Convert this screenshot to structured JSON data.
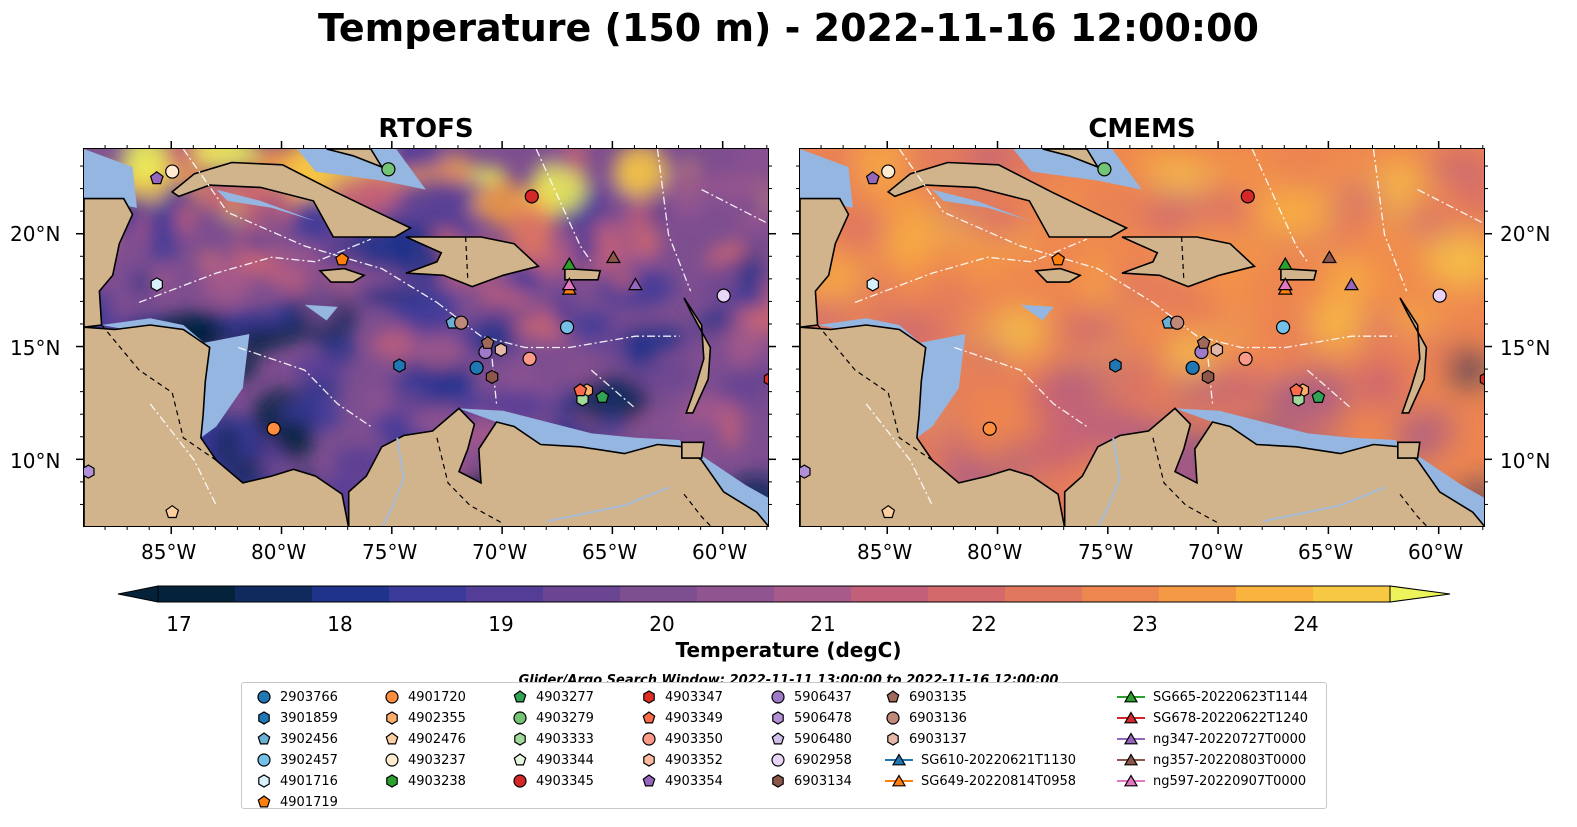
{
  "title": "Temperature (150 m) - 2022-11-16 12:00:00",
  "panels": [
    {
      "title": "RTOFS"
    },
    {
      "title": "CMEMS"
    }
  ],
  "lat_ticks": [
    "20°N",
    "15°N",
    "10°N"
  ],
  "lon_ticks": [
    "85°W",
    "80°W",
    "75°W",
    "70°W",
    "65°W",
    "60°W"
  ],
  "colorbar": {
    "label": "Temperature (degC)",
    "ticks": [
      "17",
      "18",
      "19",
      "20",
      "21",
      "22",
      "23",
      "24"
    ],
    "range": [
      16.5,
      24.5
    ],
    "extend": "both",
    "colors": [
      "#04233b",
      "#0f2a5c",
      "#1e3389",
      "#3a3a9a",
      "#533d96",
      "#6a4592",
      "#7d4e90",
      "#905490",
      "#a85b8a",
      "#c25f79",
      "#d4696c",
      "#e2775f",
      "#ee8650",
      "#f59a44",
      "#f9b33e",
      "#f7c844",
      "#edf35a"
    ]
  },
  "search_window": "Glider/Argo Search Window: 2022-11-11 13:00:00 to 2022-11-16 12:00:00",
  "legend": {
    "items": [
      {
        "label": "2903766",
        "marker": "circle",
        "color": "#1f77b4"
      },
      {
        "label": "3901859",
        "marker": "hexagon",
        "color": "#1f77b4"
      },
      {
        "label": "3902456",
        "marker": "pentagon",
        "color": "#6baed6"
      },
      {
        "label": "3902457",
        "marker": "circle",
        "color": "#74c0e8"
      },
      {
        "label": "4901716",
        "marker": "hexagon",
        "color": "#d8f0fb"
      },
      {
        "label": "4901719",
        "marker": "pentagon",
        "color": "#ff7f0e"
      },
      {
        "label": "4901720",
        "marker": "circle",
        "color": "#fd8d3c"
      },
      {
        "label": "4902355",
        "marker": "hexagon",
        "color": "#fdae6b"
      },
      {
        "label": "4902476",
        "marker": "pentagon",
        "color": "#fdd0a2"
      },
      {
        "label": "4903237",
        "marker": "circle",
        "color": "#feebd0"
      },
      {
        "label": "4903238",
        "marker": "hexagon",
        "color": "#2ca02c"
      },
      {
        "label": "4903277",
        "marker": "pentagon",
        "color": "#31a354"
      },
      {
        "label": "4903279",
        "marker": "circle",
        "color": "#74c476"
      },
      {
        "label": "4903333",
        "marker": "hexagon",
        "color": "#a1d99b"
      },
      {
        "label": "4903344",
        "marker": "pentagon",
        "color": "#e5f5e0"
      },
      {
        "label": "4903345",
        "marker": "circle",
        "color": "#d62728"
      },
      {
        "label": "4903347",
        "marker": "hexagon",
        "color": "#de2d26"
      },
      {
        "label": "4903349",
        "marker": "pentagon",
        "color": "#fb6a4a"
      },
      {
        "label": "4903350",
        "marker": "circle",
        "color": "#fc9a8a"
      },
      {
        "label": "4903352",
        "marker": "hexagon",
        "color": "#fcbba1"
      },
      {
        "label": "4903354",
        "marker": "pentagon",
        "color": "#9467bd"
      },
      {
        "label": "5906437",
        "marker": "circle",
        "color": "#9e7ac8"
      },
      {
        "label": "5906478",
        "marker": "hexagon",
        "color": "#b290d8"
      },
      {
        "label": "5906480",
        "marker": "pentagon",
        "color": "#d2c0ec"
      },
      {
        "label": "6902958",
        "marker": "circle",
        "color": "#e8d4f8"
      },
      {
        "label": "6903134",
        "marker": "hexagon",
        "color": "#8c564b"
      },
      {
        "label": "6903135",
        "marker": "pentagon",
        "color": "#a0695c"
      },
      {
        "label": "6903136",
        "marker": "circle",
        "color": "#c08878"
      },
      {
        "label": "6903137",
        "marker": "hexagon",
        "color": "#e4b8a8"
      },
      {
        "label": "SG610-20220621T1130",
        "marker": "triangle-line",
        "color": "#1f77b4"
      },
      {
        "label": "SG649-20220814T0958",
        "marker": "triangle-line",
        "color": "#ff7f0e"
      },
      {
        "label": "SG665-20220623T1144",
        "marker": "triangle-line",
        "color": "#2ca02c"
      },
      {
        "label": "SG678-20220622T1240",
        "marker": "triangle-line",
        "color": "#d62728"
      },
      {
        "label": "ng347-20220727T0000",
        "marker": "triangle-line",
        "color": "#9467bd"
      },
      {
        "label": "ng357-20220803T0000",
        "marker": "triangle-line",
        "color": "#8c564b"
      },
      {
        "label": "ng597-20220907T0000",
        "marker": "triangle-line",
        "color": "#e377c2"
      }
    ]
  },
  "map_colors": {
    "land": "#d2b48c",
    "shelf": "#94b6e0",
    "coast": "#000000"
  },
  "observations": [
    {
      "id": "2903766",
      "lon": -71.2,
      "lat": 14.1
    },
    {
      "id": "3901859",
      "lon": -74.7,
      "lat": 14.2
    },
    {
      "id": "3902456",
      "lon": -72.3,
      "lat": 16.1
    },
    {
      "id": "3902457",
      "lon": -67.1,
      "lat": 15.9
    },
    {
      "id": "4901716",
      "lon": -85.7,
      "lat": 17.8
    },
    {
      "id": "4901719",
      "lon": -77.3,
      "lat": 18.9
    },
    {
      "id": "4901720",
      "lon": -80.4,
      "lat": 11.4
    },
    {
      "id": "4902355",
      "lon": -66.2,
      "lat": 13.1
    },
    {
      "id": "4902476",
      "lon": -85.0,
      "lat": 7.7
    },
    {
      "id": "4903237",
      "lon": -85.0,
      "lat": 22.8
    },
    {
      "id": "4903277",
      "lon": -65.5,
      "lat": 12.8
    },
    {
      "id": "4903279",
      "lon": -75.2,
      "lat": 22.9
    },
    {
      "id": "4903333",
      "lon": -66.4,
      "lat": 12.7
    },
    {
      "id": "4903345",
      "lon": -68.7,
      "lat": 21.7
    },
    {
      "id": "4903347",
      "lon": -57.9,
      "lat": 13.6
    },
    {
      "id": "4903349",
      "lon": -66.5,
      "lat": 13.1
    },
    {
      "id": "4903350",
      "lon": -68.8,
      "lat": 14.5
    },
    {
      "id": "4903354",
      "lon": -85.7,
      "lat": 22.5
    },
    {
      "id": "5906437",
      "lon": -70.8,
      "lat": 14.8
    },
    {
      "id": "5906478",
      "lon": -88.8,
      "lat": 9.5
    },
    {
      "id": "6902958",
      "lon": -60.0,
      "lat": 17.3
    },
    {
      "id": "6903134",
      "lon": -70.5,
      "lat": 13.7
    },
    {
      "id": "6903135",
      "lon": -70.7,
      "lat": 15.2
    },
    {
      "id": "6903136",
      "lon": -71.9,
      "lat": 16.1
    },
    {
      "id": "6903137",
      "lon": -70.1,
      "lat": 14.9
    },
    {
      "id": "SG610-20220621T1130",
      "lon": -67.0,
      "lat": 17.8
    },
    {
      "id": "SG649-20220814T0958",
      "lon": -67.0,
      "lat": 17.6
    },
    {
      "id": "SG665-20220623T1144",
      "lon": -67.0,
      "lat": 18.7
    },
    {
      "id": "ng347-20220727T0000",
      "lon": -64.0,
      "lat": 17.8
    },
    {
      "id": "ng357-20220803T0000",
      "lon": -65.0,
      "lat": 19.0
    },
    {
      "id": "ng597-20220907T0000",
      "lon": -67.0,
      "lat": 17.8
    }
  ]
}
